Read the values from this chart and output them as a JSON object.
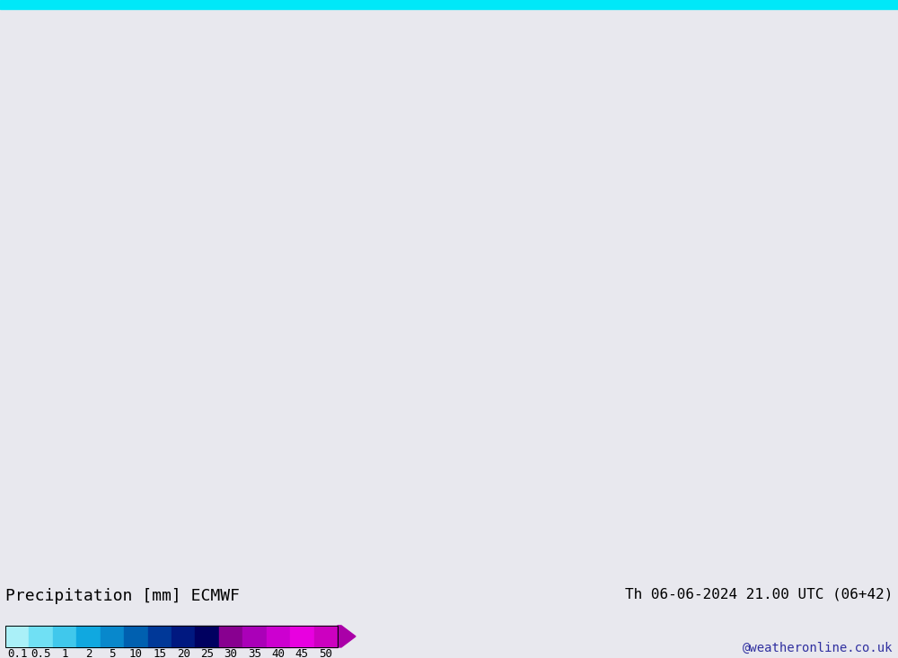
{
  "title_left": "Precipitation [mm] ECMWF",
  "title_right": "Th 06-06-2024 21.00 UTC (06+42)",
  "credit": "@weatheronline.co.uk",
  "colorbar_labels": [
    "0.1",
    "0.5",
    "1",
    "2",
    "5",
    "10",
    "15",
    "20",
    "25",
    "30",
    "35",
    "40",
    "45",
    "50"
  ],
  "colorbar_colors": [
    "#aaf0f8",
    "#70e0f4",
    "#40c8ec",
    "#10a8e0",
    "#0888cc",
    "#0060b0",
    "#003898",
    "#001880",
    "#000060",
    "#880090",
    "#aa00b8",
    "#cc00d0",
    "#e800e0",
    "#cc00c0"
  ],
  "colorbar_arrow_color": "#aa00a8",
  "bg_color": "#e8e8ee",
  "ocean_color": "#e8e8ee",
  "land_color": "#c8d8a8",
  "border_color": "#888888",
  "blue_line": "#2222cc",
  "red_line": "#cc2222",
  "cyan_top": "#00e8f8",
  "label_fontsize": 12,
  "credit_fontsize": 10
}
